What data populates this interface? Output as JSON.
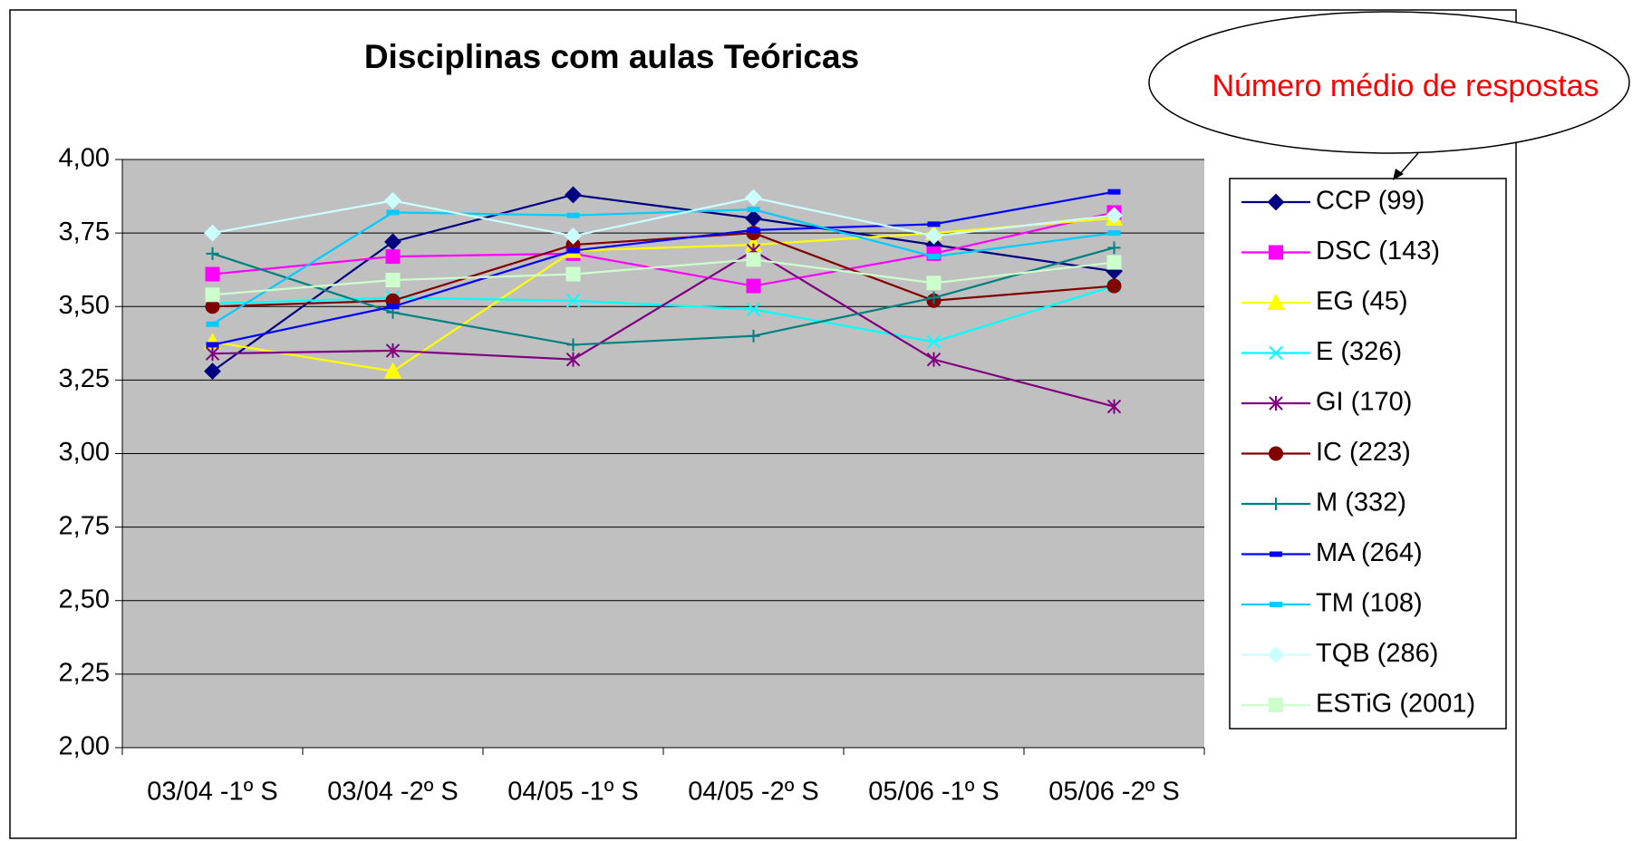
{
  "chart_data": {
    "type": "line",
    "title": "Disciplinas com aulas Teóricas",
    "annotation": "Número médio de respostas",
    "categories": [
      "03/04 -1º S",
      "03/04 -2º S",
      "04/05 -1º S",
      "04/05 -2º S",
      "05/06 -1º S",
      "05/06 -2º S"
    ],
    "ylim": [
      2,
      4
    ],
    "yticks": [
      {
        "value": 2,
        "label": "2,00"
      },
      {
        "value": 2.25,
        "label": "2,25"
      },
      {
        "value": 2.5,
        "label": "2,50"
      },
      {
        "value": 2.75,
        "label": "2,75"
      },
      {
        "value": 3,
        "label": "3,00"
      },
      {
        "value": 3.25,
        "label": "3,25"
      },
      {
        "value": 3.5,
        "label": "3,50"
      },
      {
        "value": 3.75,
        "label": "3,75"
      },
      {
        "value": 4,
        "label": "4,00"
      }
    ],
    "grid": true,
    "legend": "right",
    "series": [
      {
        "name": "CCP (99)",
        "color": "#000080",
        "marker": "diamond",
        "values": [
          3.28,
          3.72,
          3.88,
          3.8,
          3.71,
          3.62
        ]
      },
      {
        "name": "DSC (143)",
        "color": "#ff00ff",
        "marker": "square",
        "values": [
          3.61,
          3.67,
          3.68,
          3.57,
          3.68,
          3.82
        ]
      },
      {
        "name": "EG (45)",
        "color": "#ffff00",
        "marker": "triangle",
        "values": [
          3.38,
          3.28,
          3.69,
          3.71,
          3.75,
          3.8
        ]
      },
      {
        "name": "E (326)",
        "color": "#00ffff",
        "marker": "x",
        "values": [
          3.51,
          3.53,
          3.52,
          3.49,
          3.38,
          3.57
        ]
      },
      {
        "name": "GI (170)",
        "color": "#800080",
        "marker": "star",
        "values": [
          3.34,
          3.35,
          3.32,
          3.69,
          3.32,
          3.16
        ]
      },
      {
        "name": "IC (223)",
        "color": "#800000",
        "marker": "circle",
        "values": [
          3.5,
          3.52,
          3.71,
          3.75,
          3.52,
          3.57
        ]
      },
      {
        "name": "M (332)",
        "color": "#008080",
        "marker": "plus",
        "values": [
          3.68,
          3.48,
          3.37,
          3.4,
          3.53,
          3.7
        ]
      },
      {
        "name": "MA (264)",
        "color": "#0000ff",
        "marker": "dash",
        "values": [
          3.37,
          3.5,
          3.69,
          3.76,
          3.78,
          3.89
        ]
      },
      {
        "name": "TM (108)",
        "color": "#00ccff",
        "marker": "dash",
        "values": [
          3.44,
          3.82,
          3.81,
          3.83,
          3.67,
          3.75
        ]
      },
      {
        "name": "TQB (286)",
        "color": "#ccffff",
        "marker": "diamond",
        "values": [
          3.75,
          3.86,
          3.74,
          3.87,
          3.74,
          3.81
        ]
      },
      {
        "name": "ESTiG (2001)",
        "color": "#ccffcc",
        "marker": "square",
        "values": [
          3.54,
          3.59,
          3.61,
          3.66,
          3.58,
          3.65
        ]
      }
    ]
  }
}
